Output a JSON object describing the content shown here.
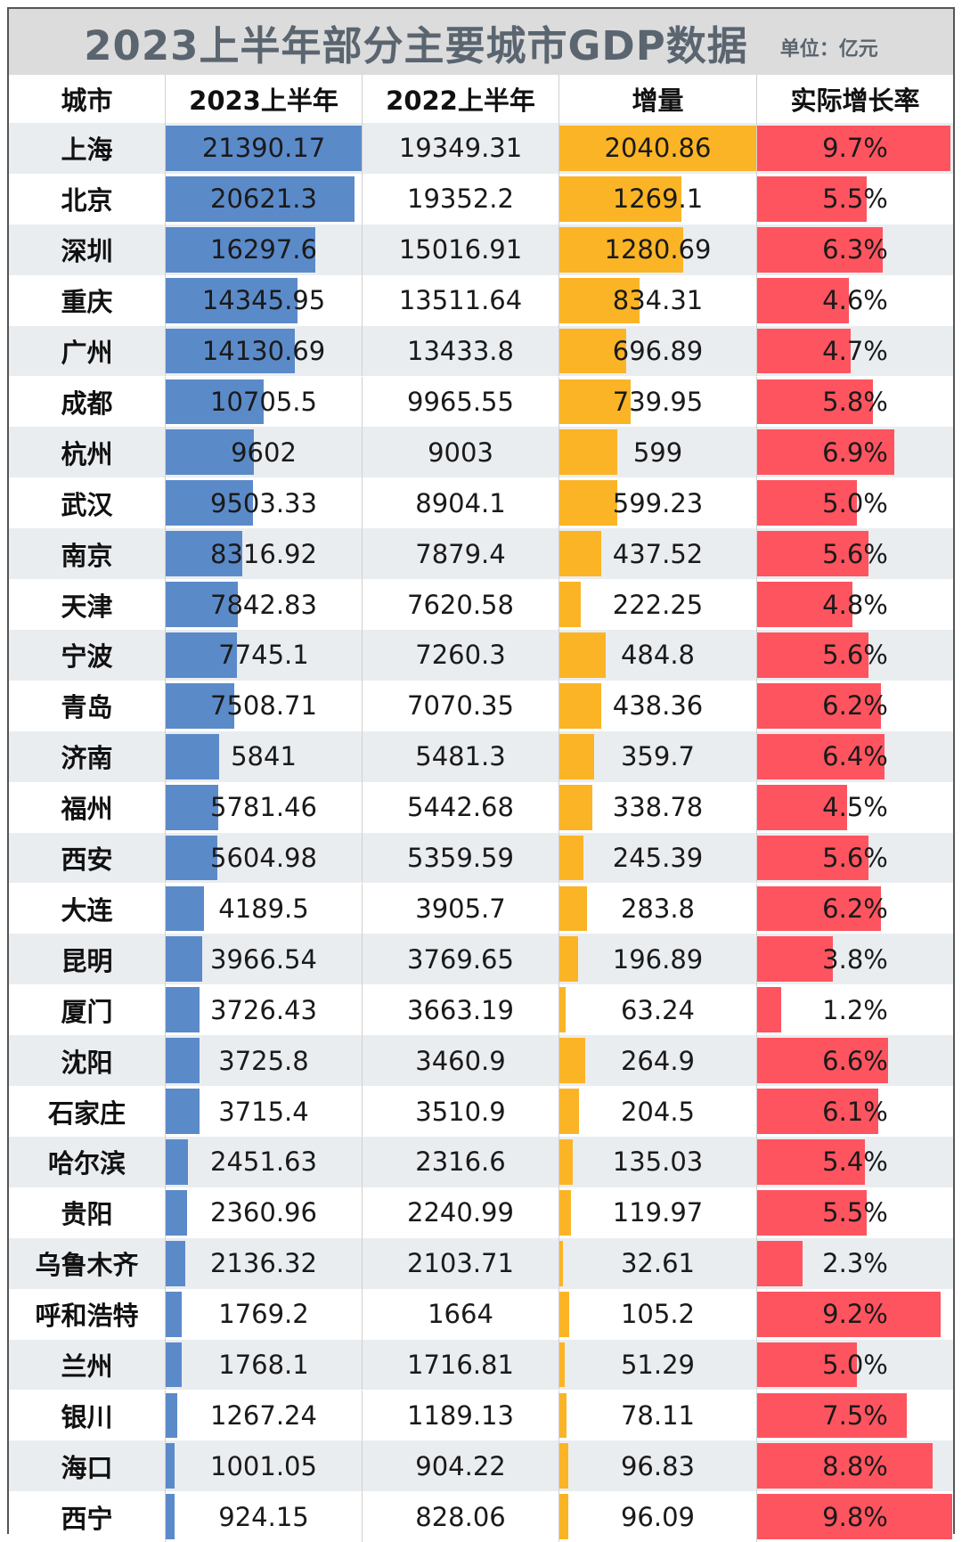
{
  "title": "2023上半年部分主要城市GDP数据",
  "unit": "单位：亿元",
  "colors": {
    "bar_2023": "#5b8ac9",
    "bar_increase": "#fbb426",
    "bar_growth": "#fe545f",
    "row_alt": "#eaedf0",
    "row_base": "#ffffff"
  },
  "headers": [
    "城市",
    "2023上半年",
    "2022上半年",
    "增量",
    "实际增长率"
  ],
  "chart_data": {
    "type": "table",
    "title": "2023上半年部分主要城市GDP数据",
    "unit": "单位：亿元",
    "columns": [
      "城市",
      "2023上半年",
      "2022上半年",
      "增量",
      "实际增长率"
    ],
    "rows": [
      {
        "city": "上海",
        "gdp2023": "21390.17",
        "gdp2022": "19349.31",
        "increase": "2040.86",
        "growth": "9.7%"
      },
      {
        "city": "北京",
        "gdp2023": "20621.3",
        "gdp2022": "19352.2",
        "increase": "1269.1",
        "growth": "5.5%"
      },
      {
        "city": "深圳",
        "gdp2023": "16297.6",
        "gdp2022": "15016.91",
        "increase": "1280.69",
        "growth": "6.3%"
      },
      {
        "city": "重庆",
        "gdp2023": "14345.95",
        "gdp2022": "13511.64",
        "increase": "834.31",
        "growth": "4.6%"
      },
      {
        "city": "广州",
        "gdp2023": "14130.69",
        "gdp2022": "13433.8",
        "increase": "696.89",
        "growth": "4.7%"
      },
      {
        "city": "成都",
        "gdp2023": "10705.5",
        "gdp2022": "9965.55",
        "increase": "739.95",
        "growth": "5.8%"
      },
      {
        "city": "杭州",
        "gdp2023": "9602",
        "gdp2022": "9003",
        "increase": "599",
        "growth": "6.9%"
      },
      {
        "city": "武汉",
        "gdp2023": "9503.33",
        "gdp2022": "8904.1",
        "increase": "599.23",
        "growth": "5.0%"
      },
      {
        "city": "南京",
        "gdp2023": "8316.92",
        "gdp2022": "7879.4",
        "increase": "437.52",
        "growth": "5.6%"
      },
      {
        "city": "天津",
        "gdp2023": "7842.83",
        "gdp2022": "7620.58",
        "increase": "222.25",
        "growth": "4.8%"
      },
      {
        "city": "宁波",
        "gdp2023": "7745.1",
        "gdp2022": "7260.3",
        "increase": "484.8",
        "growth": "5.6%"
      },
      {
        "city": "青岛",
        "gdp2023": "7508.71",
        "gdp2022": "7070.35",
        "increase": "438.36",
        "growth": "6.2%"
      },
      {
        "city": "济南",
        "gdp2023": "5841",
        "gdp2022": "5481.3",
        "increase": "359.7",
        "growth": "6.4%"
      },
      {
        "city": "福州",
        "gdp2023": "5781.46",
        "gdp2022": "5442.68",
        "increase": "338.78",
        "growth": "4.5%"
      },
      {
        "city": "西安",
        "gdp2023": "5604.98",
        "gdp2022": "5359.59",
        "increase": "245.39",
        "growth": "5.6%"
      },
      {
        "city": "大连",
        "gdp2023": "4189.5",
        "gdp2022": "3905.7",
        "increase": "283.8",
        "growth": "6.2%"
      },
      {
        "city": "昆明",
        "gdp2023": "3966.54",
        "gdp2022": "3769.65",
        "increase": "196.89",
        "growth": "3.8%"
      },
      {
        "city": "厦门",
        "gdp2023": "3726.43",
        "gdp2022": "3663.19",
        "increase": "63.24",
        "growth": "1.2%"
      },
      {
        "city": "沈阳",
        "gdp2023": "3725.8",
        "gdp2022": "3460.9",
        "increase": "264.9",
        "growth": "6.6%"
      },
      {
        "city": "石家庄",
        "gdp2023": "3715.4",
        "gdp2022": "3510.9",
        "increase": "204.5",
        "growth": "6.1%"
      },
      {
        "city": "哈尔滨",
        "gdp2023": "2451.63",
        "gdp2022": "2316.6",
        "increase": "135.03",
        "growth": "5.4%"
      },
      {
        "city": "贵阳",
        "gdp2023": "2360.96",
        "gdp2022": "2240.99",
        "increase": "119.97",
        "growth": "5.5%"
      },
      {
        "city": "乌鲁木齐",
        "gdp2023": "2136.32",
        "gdp2022": "2103.71",
        "increase": "32.61",
        "growth": "2.3%"
      },
      {
        "city": "呼和浩特",
        "gdp2023": "1769.2",
        "gdp2022": "1664",
        "increase": "105.2",
        "growth": "9.2%"
      },
      {
        "city": "兰州",
        "gdp2023": "1768.1",
        "gdp2022": "1716.81",
        "increase": "51.29",
        "growth": "5.0%"
      },
      {
        "city": "银川",
        "gdp2023": "1267.24",
        "gdp2022": "1189.13",
        "increase": "78.11",
        "growth": "7.5%"
      },
      {
        "city": "海口",
        "gdp2023": "1001.05",
        "gdp2022": "904.22",
        "increase": "96.83",
        "growth": "8.8%"
      },
      {
        "city": "西宁",
        "gdp2023": "924.15",
        "gdp2022": "828.06",
        "increase": "96.09",
        "growth": "9.8%"
      }
    ]
  }
}
